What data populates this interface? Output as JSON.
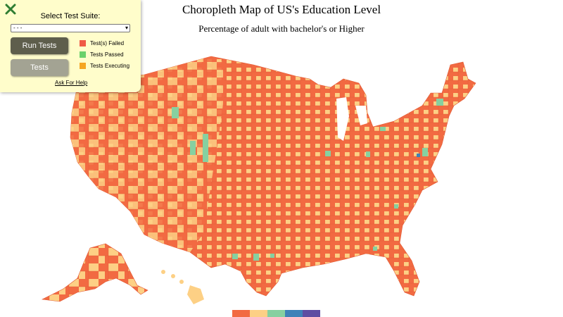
{
  "map": {
    "title": "Choropleth Map of US's Education Level",
    "subtitle": "Percentage of adult with bachelor's or Higher",
    "legend_colors": [
      "#f26a42",
      "#fdd085",
      "#86d0a0",
      "#3e82b8",
      "#5e4ea2"
    ]
  },
  "test_panel": {
    "close_icon": "close-x-icon",
    "select_label": "Select Test Suite:",
    "select_value": "- - -",
    "run_button": "Run Tests",
    "tests_button": "Tests",
    "legend": [
      {
        "label": "Test(s) Failed",
        "color": "#f05a46"
      },
      {
        "label": "Tests Passed",
        "color": "#6bd16b"
      },
      {
        "label": "Tests Executing",
        "color": "#f5a623"
      }
    ],
    "help_link": "Ask For Help"
  }
}
